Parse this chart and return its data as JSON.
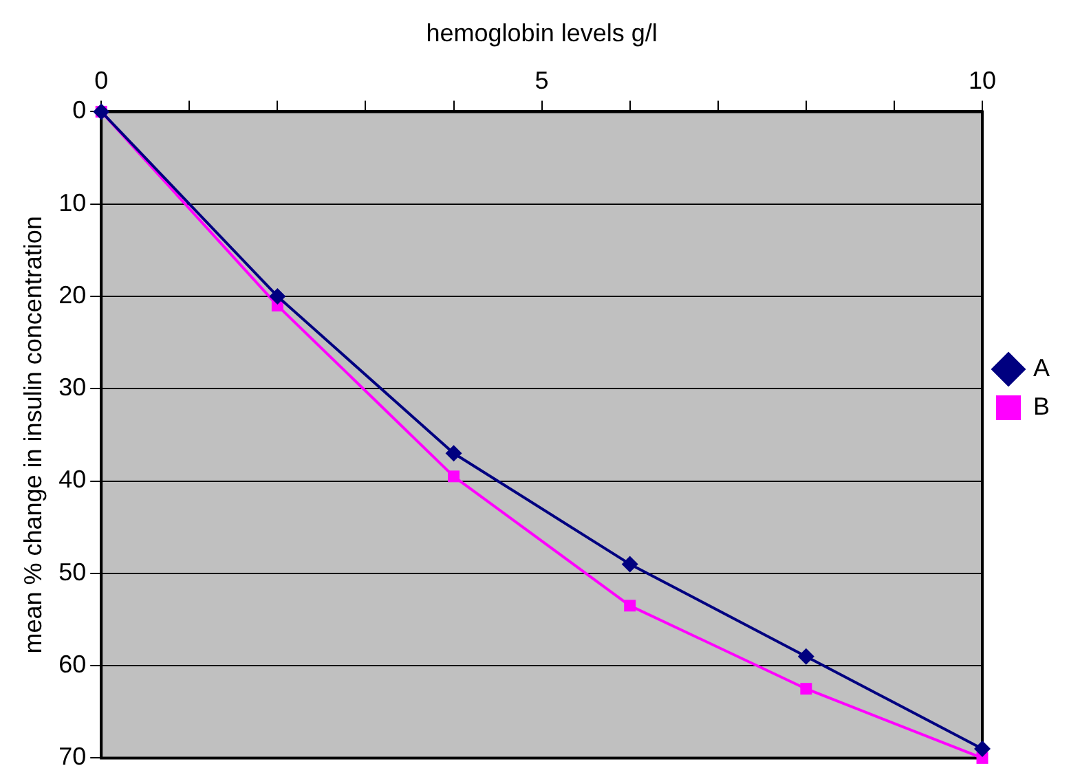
{
  "chart_data": {
    "type": "line",
    "xlabel": "hemoglobin levels g/l",
    "ylabel": "mean % change in insulin concentration",
    "x": [
      0,
      2,
      4,
      6,
      8,
      10
    ],
    "series": [
      {
        "name": "A",
        "color": "#000080",
        "marker": "diamond",
        "values": [
          0,
          20,
          37,
          49,
          59,
          69
        ]
      },
      {
        "name": "B",
        "color": "#ff00ff",
        "marker": "square",
        "values": [
          0,
          21,
          39.5,
          53.5,
          62.5,
          70
        ]
      }
    ],
    "xlim": [
      0,
      10
    ],
    "xticks": [
      0,
      {
        "value": 1,
        "label": null
      },
      {
        "value": 2,
        "label": null
      },
      {
        "value": 3,
        "label": null
      },
      {
        "value": 4,
        "label": null
      },
      5,
      {
        "value": 6,
        "label": null
      },
      {
        "value": 7,
        "label": null
      },
      {
        "value": 8,
        "label": null
      },
      {
        "value": 9,
        "label": null
      },
      10
    ],
    "ylim": [
      70,
      0
    ],
    "yticks": [
      0,
      10,
      20,
      30,
      40,
      50,
      60,
      70
    ],
    "grid": "y",
    "legend": "right",
    "line_style": "solid"
  }
}
